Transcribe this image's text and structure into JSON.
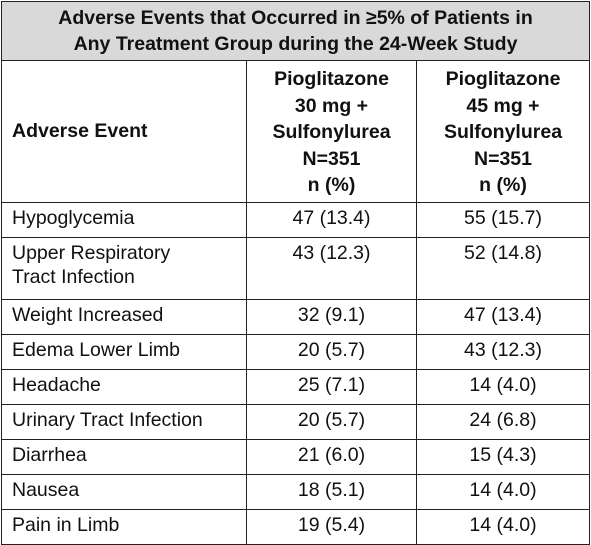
{
  "table": {
    "title_lines": [
      "Adverse Events that Occurred in ≥5% of Patients in",
      "Any Treatment Group during the 24-Week Study"
    ],
    "header": {
      "first_column": "Adverse Event",
      "groups": [
        {
          "lines": [
            "Pioglitazone",
            "30 mg +",
            "Sulfonylurea",
            "N=351",
            "n (%)"
          ]
        },
        {
          "lines": [
            "Pioglitazone",
            "45 mg +",
            "Sulfonylurea",
            "N=351",
            "n (%)"
          ]
        }
      ]
    },
    "rows": [
      {
        "event_lines": [
          "Hypoglycemia"
        ],
        "values": [
          "47 (13.4)",
          "55 (15.7)"
        ]
      },
      {
        "event_lines": [
          "Upper Respiratory",
          "Tract Infection"
        ],
        "values": [
          "43 (12.3)",
          "52 (14.8)"
        ]
      },
      {
        "event_lines": [
          "Weight Increased"
        ],
        "values": [
          "32 (9.1)",
          "47 (13.4)"
        ]
      },
      {
        "event_lines": [
          "Edema Lower Limb"
        ],
        "values": [
          "20 (5.7)",
          "43 (12.3)"
        ]
      },
      {
        "event_lines": [
          "Headache"
        ],
        "values": [
          "25 (7.1)",
          "14 (4.0)"
        ]
      },
      {
        "event_lines": [
          "Urinary Tract Infection"
        ],
        "values": [
          "20 (5.7)",
          "24 (6.8)"
        ]
      },
      {
        "event_lines": [
          "Diarrhea"
        ],
        "values": [
          "21 (6.0)",
          "15 (4.3)"
        ]
      },
      {
        "event_lines": [
          "Nausea"
        ],
        "values": [
          "18 (5.1)",
          "14 (4.0)"
        ]
      },
      {
        "event_lines": [
          "Pain in Limb"
        ],
        "values": [
          "19 (5.4)",
          "14 (4.0)"
        ]
      }
    ]
  }
}
